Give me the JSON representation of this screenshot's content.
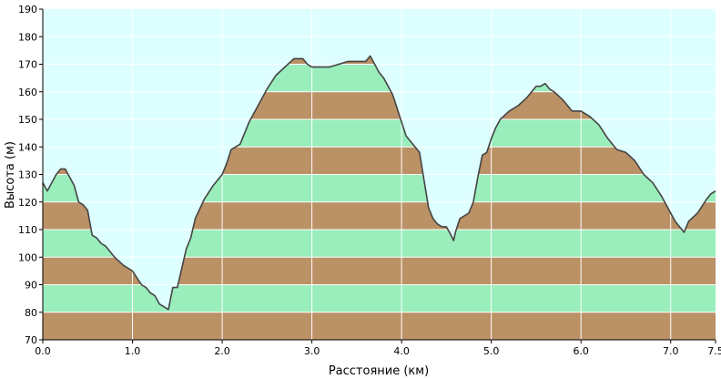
{
  "chart_data": {
    "type": "area",
    "xlabel": "Расстояние  (км)",
    "ylabel": "Высота (м)",
    "xlim": [
      0,
      7.5
    ],
    "ylim": [
      70,
      190
    ],
    "x_ticks": [
      0,
      1,
      2,
      3,
      4,
      5,
      6,
      7,
      7.5
    ],
    "x_tick_labels": [
      "0.0",
      "1.0",
      "2.0",
      "3.0",
      "4.0",
      "5.0",
      "6.0",
      "7.0",
      "7.5"
    ],
    "y_ticks": [
      70,
      80,
      90,
      100,
      110,
      120,
      130,
      140,
      150,
      160,
      170,
      180,
      190
    ],
    "grid": true,
    "colors": {
      "sky": "#ddffff",
      "band_green": "#99eebb",
      "band_brown": "#bb9166",
      "outline": "#444444",
      "grid": "#ffffff",
      "axis": "#000000"
    },
    "bands": {
      "step": 10,
      "brown": [
        [
          70,
          80
        ],
        [
          90,
          100
        ],
        [
          110,
          120
        ],
        [
          130,
          140
        ],
        [
          150,
          160
        ],
        [
          170,
          180
        ]
      ],
      "green": [
        [
          80,
          90
        ],
        [
          100,
          110
        ],
        [
          120,
          130
        ],
        [
          140,
          150
        ],
        [
          160,
          170
        ],
        [
          180,
          190
        ]
      ]
    },
    "series": [
      {
        "x": [
          0.0,
          0.05,
          0.1,
          0.15,
          0.2,
          0.25,
          0.3,
          0.35,
          0.4,
          0.45,
          0.5,
          0.55,
          0.6,
          0.65,
          0.7,
          0.8,
          0.9,
          1.0,
          1.1,
          1.15,
          1.2,
          1.25,
          1.3,
          1.35,
          1.4,
          1.45,
          1.5,
          1.55,
          1.6,
          1.65,
          1.7,
          1.8,
          1.9,
          2.0,
          2.05,
          2.1,
          2.2,
          2.3,
          2.4,
          2.5,
          2.6,
          2.7,
          2.8,
          2.85,
          2.9,
          2.95,
          3.0,
          3.05,
          3.1,
          3.15,
          3.2,
          3.3,
          3.4,
          3.5,
          3.6,
          3.65,
          3.7,
          3.75,
          3.8,
          3.9,
          4.0,
          4.05,
          4.1,
          4.2,
          4.25,
          4.3,
          4.35,
          4.4,
          4.45,
          4.5,
          4.55,
          4.58,
          4.6,
          4.65,
          4.7,
          4.75,
          4.8,
          4.85,
          4.9,
          4.95,
          5.0,
          5.05,
          5.1,
          5.2,
          5.3,
          5.4,
          5.5,
          5.55,
          5.6,
          5.65,
          5.7,
          5.8,
          5.9,
          6.0,
          6.1,
          6.2,
          6.3,
          6.4,
          6.5,
          6.6,
          6.7,
          6.8,
          6.9,
          7.0,
          7.05,
          7.1,
          7.15,
          7.2,
          7.3,
          7.4,
          7.45,
          7.5
        ],
        "y": [
          127,
          124,
          127,
          130,
          132,
          132,
          129,
          126,
          120,
          119,
          117,
          108,
          107,
          105,
          104,
          100,
          97,
          95,
          90,
          89,
          87,
          86,
          83,
          82,
          81,
          89,
          89,
          96,
          103,
          107,
          114,
          121,
          126,
          130,
          134,
          139,
          141,
          149,
          155,
          161,
          166,
          169,
          172,
          172,
          172,
          170,
          169,
          169,
          169,
          169,
          169,
          170,
          171,
          171,
          171,
          173,
          170,
          167,
          165,
          159,
          149,
          144,
          142,
          138,
          128,
          118,
          114,
          112,
          111,
          111,
          108,
          106,
          109,
          114,
          115,
          116,
          120,
          129,
          137,
          138,
          143,
          147,
          150,
          153,
          155,
          158,
          162,
          162,
          163,
          161,
          160,
          157,
          153,
          153,
          151,
          148,
          143,
          139,
          138,
          135,
          130,
          127,
          122,
          116,
          113,
          111,
          109,
          113,
          116,
          121,
          123,
          124
        ]
      }
    ]
  }
}
